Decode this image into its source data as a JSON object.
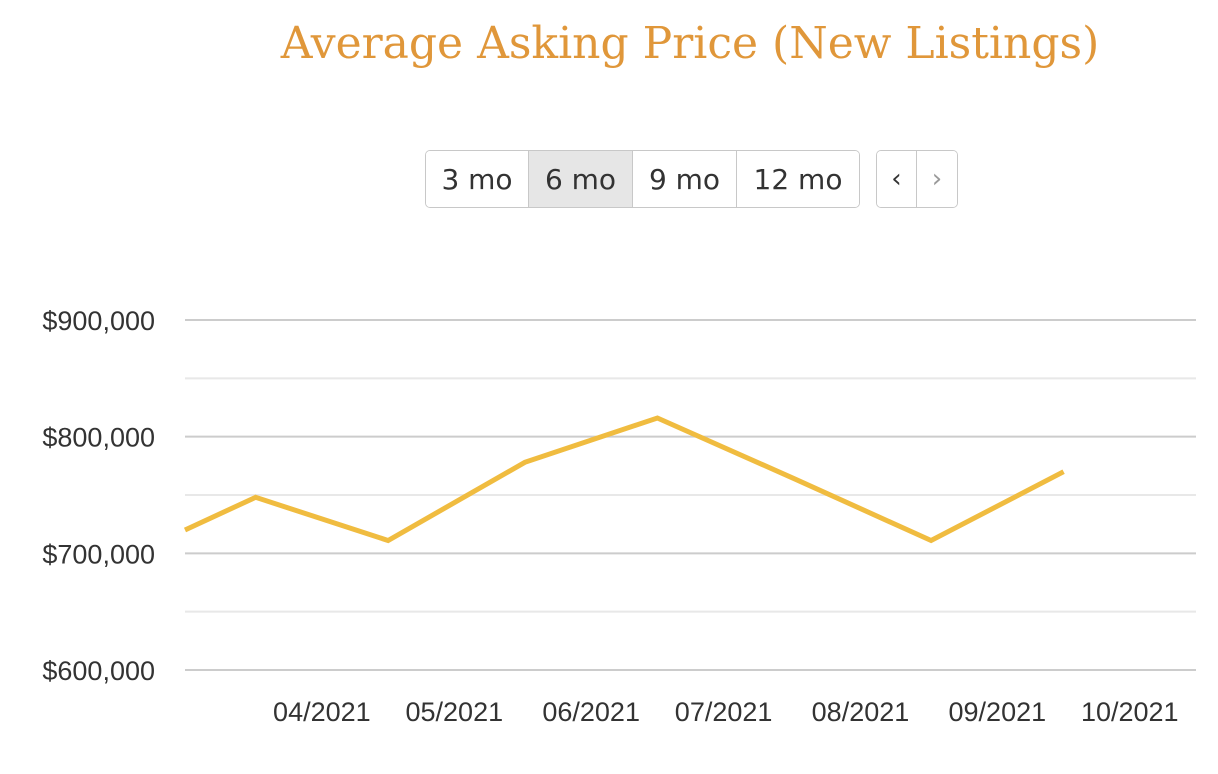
{
  "title": "Average Asking Price (New Listings)",
  "controls": {
    "ranges": [
      {
        "label": "3 mo",
        "active": false
      },
      {
        "label": "6 mo",
        "active": true
      },
      {
        "label": "9 mo",
        "active": false
      },
      {
        "label": "12 mo",
        "active": false
      }
    ],
    "prev_label": "‹",
    "next_label": "›"
  },
  "chart_data": {
    "type": "line",
    "title": "Average Asking Price (New Listings)",
    "xlabel": "",
    "ylabel": "",
    "x_range": [
      "2021-03-16",
      "2021-10-31"
    ],
    "categories": [
      "04/2021",
      "05/2021",
      "06/2021",
      "07/2021",
      "08/2021",
      "09/2021",
      "10/2021"
    ],
    "ylim": [
      600000,
      900000
    ],
    "yticks": [
      600000,
      700000,
      800000,
      900000
    ],
    "ytick_labels": [
      "$600,000",
      "$700,000",
      "$800,000",
      "$900,000"
    ],
    "grid": true,
    "legend": "none",
    "series": [
      {
        "color": "#f0bc40",
        "points": [
          {
            "x": "2021-03-16",
            "y": 720000
          },
          {
            "x": "2021-04-01",
            "y": 748000
          },
          {
            "x": "2021-05-01",
            "y": 711000
          },
          {
            "x": "2021-06-01",
            "y": 778000
          },
          {
            "x": "2021-07-01",
            "y": 816000
          },
          {
            "x": "2021-08-01",
            "y": 764000
          },
          {
            "x": "2021-09-01",
            "y": 711000
          },
          {
            "x": "2021-10-01",
            "y": 770000
          }
        ]
      }
    ]
  }
}
